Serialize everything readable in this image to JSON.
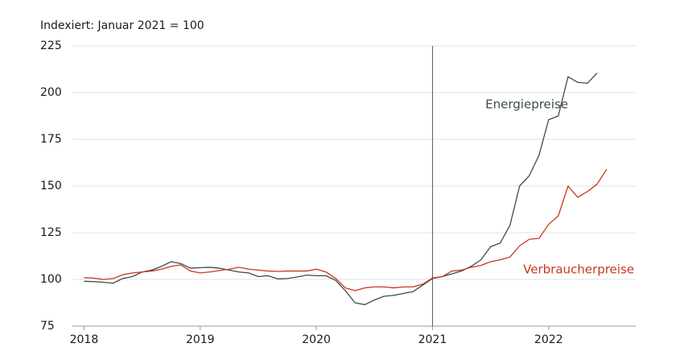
{
  "chart_data": {
    "type": "line",
    "subtitle": "Indexiert: Januar 2021 = 100",
    "x": [
      2018,
      2018.083,
      2018.167,
      2018.25,
      2018.333,
      2018.417,
      2018.5,
      2018.583,
      2018.667,
      2018.75,
      2018.833,
      2018.917,
      2019,
      2019.083,
      2019.167,
      2019.25,
      2019.333,
      2019.417,
      2019.5,
      2019.583,
      2019.667,
      2019.75,
      2019.833,
      2019.917,
      2020,
      2020.083,
      2020.167,
      2020.25,
      2020.333,
      2020.417,
      2020.5,
      2020.583,
      2020.667,
      2020.75,
      2020.833,
      2020.917,
      2021,
      2021.083,
      2021.167,
      2021.25,
      2021.333,
      2021.417,
      2021.5,
      2021.583,
      2021.667,
      2021.75,
      2021.833,
      2021.917,
      2022,
      2022.083,
      2022.167,
      2022.25,
      2022.333,
      2022.417,
      2022.5
    ],
    "series": [
      {
        "name": "Energiepreise",
        "color": "#3b4b4f",
        "values": [
          99,
          98.8,
          98.5,
          98,
          100.5,
          101.5,
          104,
          105,
          107,
          109.5,
          108.5,
          106,
          106.3,
          106.5,
          106,
          105,
          104,
          103.5,
          101.5,
          102,
          100.3,
          100.5,
          101.3,
          102.3,
          102,
          102,
          99.5,
          94,
          87.5,
          86.5,
          89,
          91,
          91.5,
          92.5,
          93.5,
          97,
          100.5,
          101.5,
          103,
          104.5,
          107,
          110.5,
          117.5,
          119.5,
          129,
          150,
          155.5,
          166.5,
          185.5,
          187.5,
          208.5,
          205.5,
          205,
          210.5,
          null
        ]
      },
      {
        "name": "Verbraucherpreise",
        "color": "#c9381c",
        "values": [
          101,
          100.7,
          100,
          100.5,
          102.5,
          103.5,
          104,
          104.5,
          105.5,
          107,
          107.8,
          104.5,
          103.5,
          104,
          104.8,
          105.5,
          106.5,
          105.5,
          105,
          104.5,
          104.3,
          104.5,
          104.5,
          104.5,
          105.5,
          104,
          100.5,
          95.5,
          94,
          95.5,
          96,
          96,
          95.5,
          96,
          96,
          97.5,
          100.8,
          101.5,
          104.5,
          105,
          106.5,
          107.5,
          109.5,
          110.5,
          112,
          118,
          121.5,
          122,
          129.5,
          134,
          150,
          144,
          147,
          151,
          159
        ]
      }
    ],
    "reference_x": 2021,
    "xlim": [
      2017.9,
      2022.75
    ],
    "xticks": [
      2018,
      2019,
      2020,
      2021,
      2022
    ],
    "ylim": [
      75,
      225
    ],
    "yticks": [
      75,
      100,
      125,
      150,
      175,
      200,
      225
    ],
    "grid": true
  }
}
